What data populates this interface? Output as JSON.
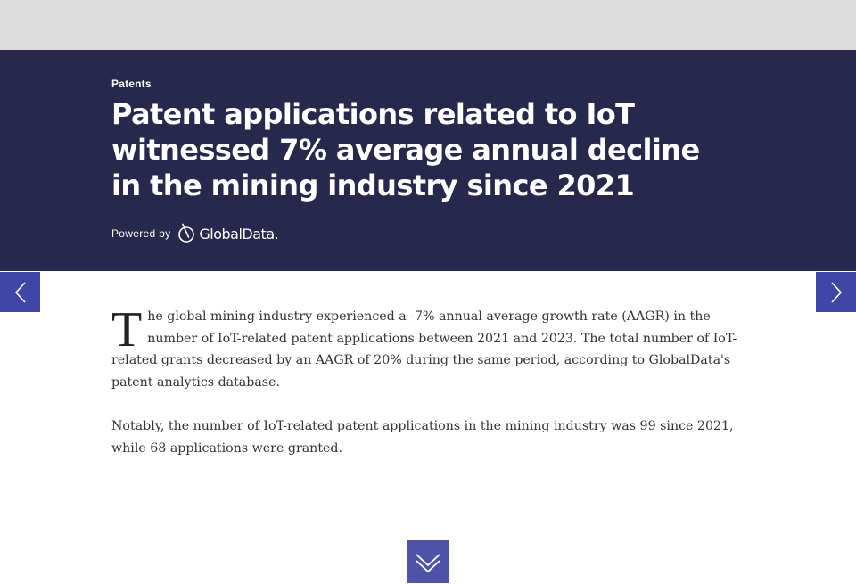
{
  "hero": {
    "category": "Patents",
    "title": "Patent applications related to IoT witnessed 7% average annual decline in the mining industry since 2021",
    "powered_by_label": "Powered by",
    "brand_name": "GlobalData."
  },
  "nav": {
    "prev_icon": "chevron-left-icon",
    "next_icon": "chevron-right-icon"
  },
  "article": {
    "dropcap": "T",
    "paragraph_1_rest": "he global mining industry experienced a -7% annual average growth rate (AAGR) in the number of IoT-related patent applications between 2021 and 2023. The total number of IoT-related grants decreased by an AAGR of 20% during the same period, according to GlobalData's patent analytics database.",
    "paragraph_2": "Notably, the number of IoT-related patent applications in the mining industry was 99 since 2021, while 68 applications were granted."
  },
  "scroll": {
    "icon": "double-chevron-down-icon"
  },
  "colors": {
    "hero_bg": "#27284c",
    "accent": "#3f46a6",
    "topbar": "#dcdcdc"
  }
}
